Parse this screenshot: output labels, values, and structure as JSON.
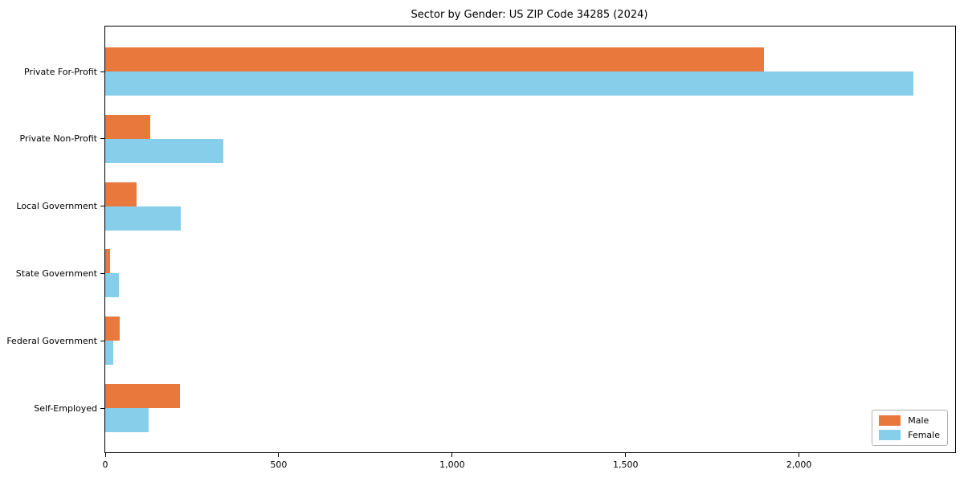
{
  "title": "Sector by Gender: US ZIP Code 34285 (2024)",
  "chart_data": {
    "type": "bar",
    "orientation": "horizontal",
    "title": "Sector by Gender: US ZIP Code 34285 (2024)",
    "categories": [
      "Private For-Profit",
      "Private Non-Profit",
      "Local Government",
      "State Government",
      "Federal Government",
      "Self-Employed"
    ],
    "series": [
      {
        "name": "Male",
        "color": "#E8783C",
        "values": [
          1900,
          130,
          90,
          15,
          42,
          215
        ]
      },
      {
        "name": "Female",
        "color": "#87CEEB",
        "values": [
          2330,
          340,
          218,
          40,
          22,
          125
        ]
      }
    ],
    "xlabel": "",
    "ylabel": "",
    "xlim": [
      0,
      2450
    ],
    "xticks": [
      0,
      500,
      1000,
      1500,
      2000
    ],
    "xtick_labels": [
      "0",
      "500",
      "1,000",
      "1,500",
      "2,000"
    ],
    "grid": false,
    "legend": {
      "position": "lower right",
      "entries": [
        "Male",
        "Female"
      ]
    }
  },
  "colors": {
    "male": "#E8783C",
    "female": "#87CEEB",
    "axis": "#000000",
    "background": "#FFFFFF",
    "legend_border": "#B0B0B0"
  }
}
